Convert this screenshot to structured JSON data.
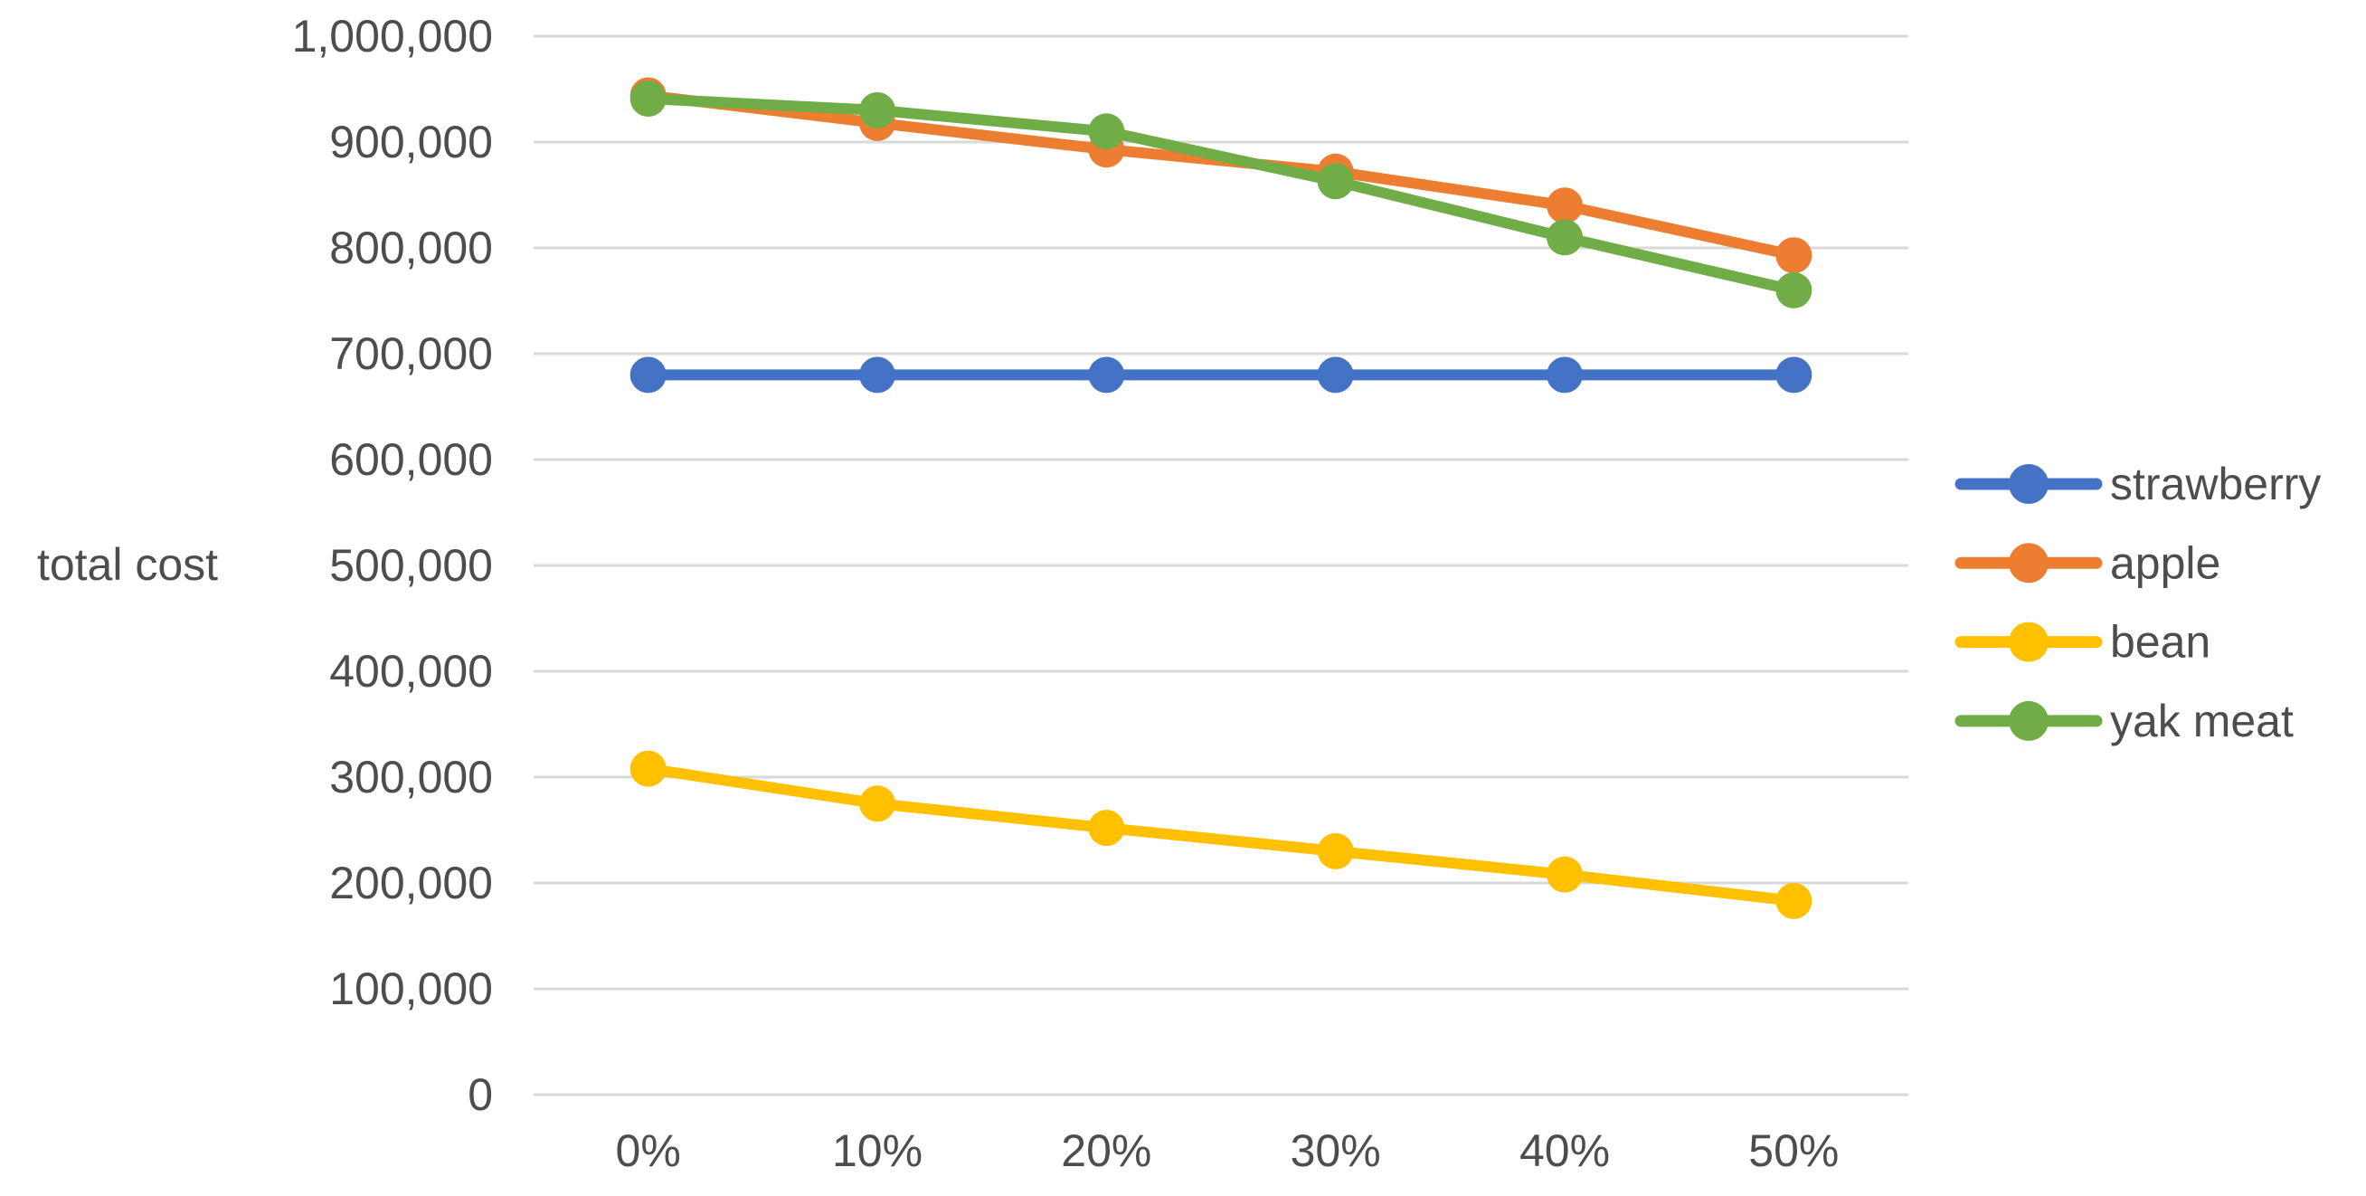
{
  "figure": {
    "background": "#ffffff"
  },
  "chart_data": {
    "type": "line",
    "title": "",
    "xlabel": "",
    "ylabel": "total cost",
    "categories": [
      "0%",
      "10%",
      "20%",
      "30%",
      "40%",
      "50%"
    ],
    "series": [
      {
        "name": "strawberry",
        "color": "#4472C4",
        "values": [
          680000,
          680000,
          680000,
          680000,
          680000,
          680000
        ]
      },
      {
        "name": "apple",
        "color": "#ED7D31",
        "values": [
          944000,
          918000,
          893000,
          872000,
          840000,
          793000
        ]
      },
      {
        "name": "bean",
        "color": "#FFC000",
        "values": [
          308000,
          275000,
          252000,
          230000,
          208000,
          183000
        ]
      },
      {
        "name": "yak meat",
        "color": "#70AD47",
        "values": [
          941000,
          930000,
          910000,
          863000,
          810000,
          760000
        ]
      }
    ],
    "ylim": [
      0,
      1000000
    ],
    "y_ticks": [
      0,
      100000,
      200000,
      300000,
      400000,
      500000,
      600000,
      700000,
      800000,
      900000,
      1000000
    ],
    "y_tick_labels": [
      "0",
      "100,000",
      "200,000",
      "300,000",
      "400,000",
      "500,000",
      "600,000",
      "700,000",
      "800,000",
      "900,000",
      "1,000,000"
    ],
    "grid": "horizontal",
    "gridline_color": "#D9D9D9",
    "text_color": "#4d4d4d",
    "legend_position": "right",
    "marker": "circle"
  }
}
